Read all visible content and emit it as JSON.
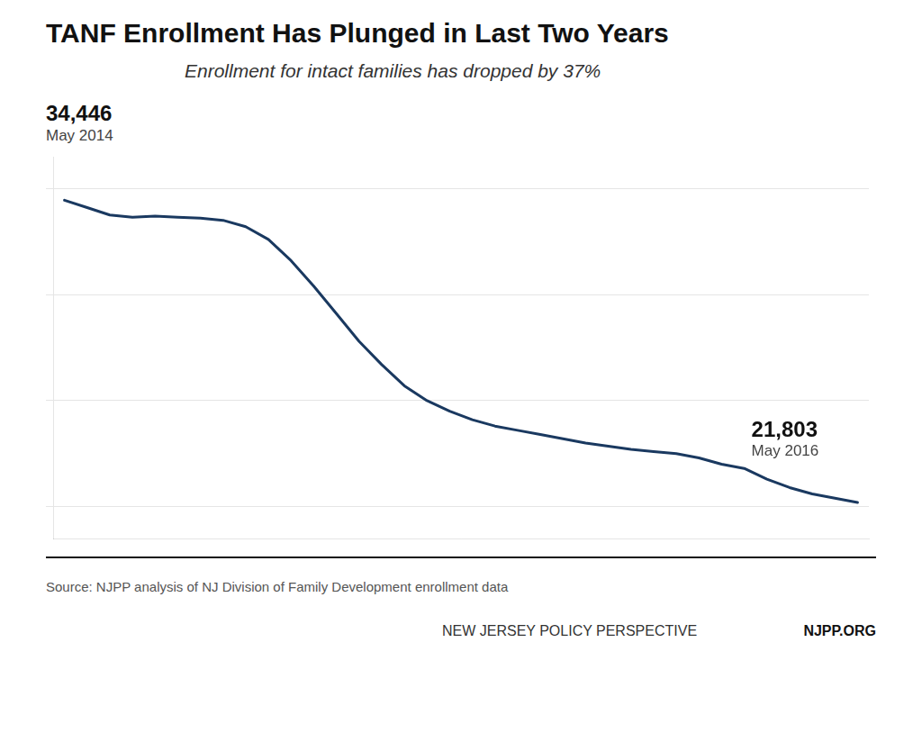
{
  "chart_data": {
    "type": "line",
    "title": "TANF Enrollment Has Plunged in Last Two Years",
    "subtitle": "Enrollment for intact families has dropped by 37%",
    "categories": [
      null,
      null,
      null,
      null,
      null,
      null,
      null,
      null,
      null,
      null,
      null,
      null,
      null,
      null,
      null,
      null,
      null,
      null,
      null,
      null,
      null,
      null,
      null,
      null,
      null,
      null,
      null,
      null,
      null,
      null,
      null,
      null,
      null,
      null,
      null,
      null
    ],
    "values": [
      34446,
      34100,
      33750,
      33650,
      33700,
      33650,
      33600,
      33500,
      33200,
      32600,
      31600,
      30400,
      29100,
      27800,
      26700,
      25700,
      25000,
      24500,
      24100,
      23800,
      23600,
      23400,
      23200,
      23000,
      22850,
      22700,
      22600,
      22500,
      22300,
      22000,
      21803,
      21300,
      20900,
      20600,
      20400,
      20200
    ],
    "color": "#1a3960",
    "ylim": [
      18500,
      36500
    ],
    "yticks": [
      20000,
      25000,
      30000,
      35000
    ],
    "grid": true,
    "tick_labels": false,
    "annotations": [
      "34,446",
      "May 2014",
      "21,803",
      "May 2016",
      "Source: NJPP analysis of NJ Division of Family Development enrollment data",
      "NEW JERSEY POLICY PERSPECTIVE",
      "NJPP.ORG"
    ]
  }
}
